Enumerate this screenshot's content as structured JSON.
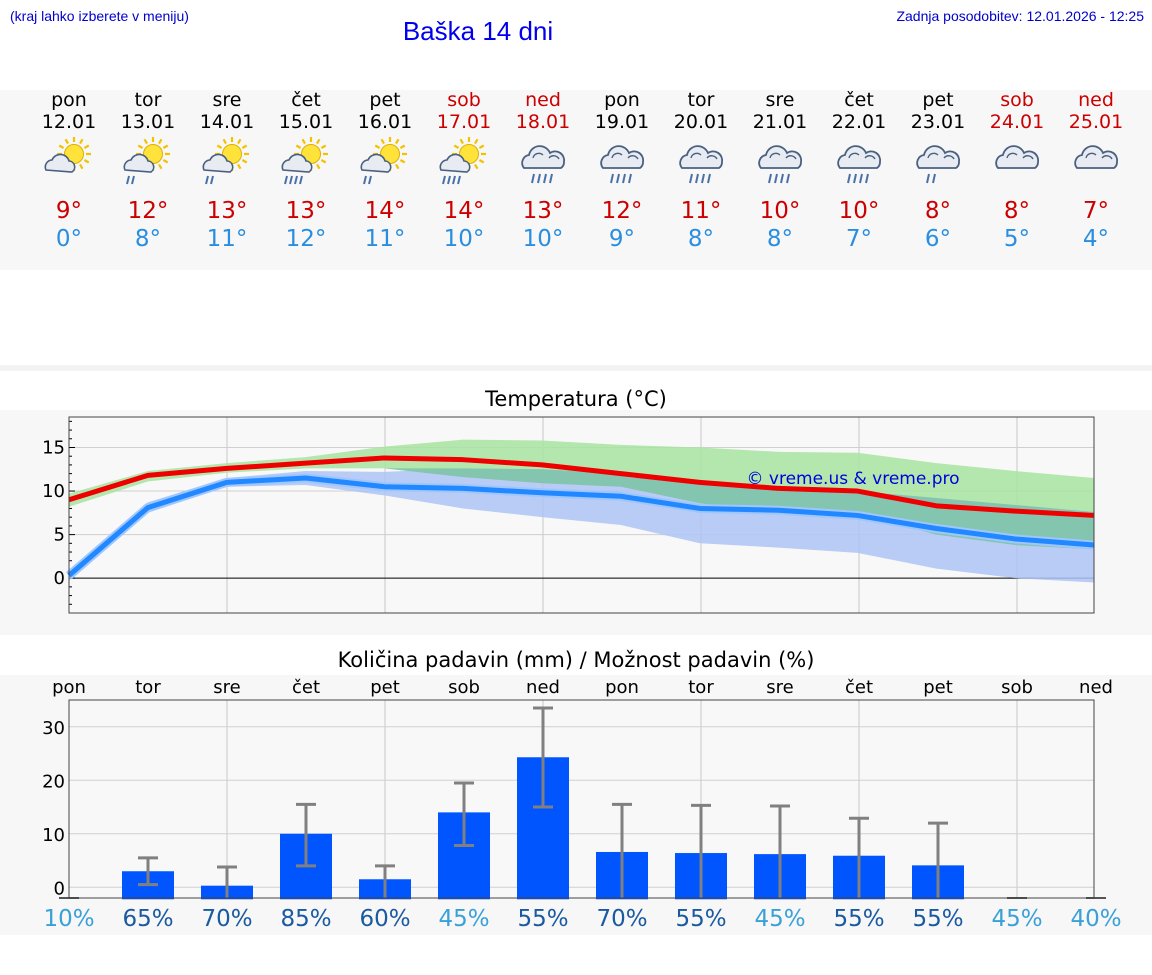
{
  "header": {
    "hint": "(kraj lahko izberete v meniju)",
    "title": "Baška 14 dni",
    "updated": "Zadnja posodobitev: 12.01.2026 - 12:25"
  },
  "days": [
    {
      "name": "pon",
      "date": "12.01",
      "weekend": false,
      "icon": "sun-cloud-icon",
      "tmax": "9°",
      "tmin": "0°"
    },
    {
      "name": "tor",
      "date": "13.01",
      "weekend": false,
      "icon": "sun-cloud-rain-icon",
      "tmax": "12°",
      "tmin": "8°"
    },
    {
      "name": "sre",
      "date": "14.01",
      "weekend": false,
      "icon": "sun-cloud-rain-icon",
      "tmax": "13°",
      "tmin": "11°"
    },
    {
      "name": "čet",
      "date": "15.01",
      "weekend": false,
      "icon": "sun-cloud-heavy-rain-icon",
      "tmax": "13°",
      "tmin": "12°"
    },
    {
      "name": "pet",
      "date": "16.01",
      "weekend": false,
      "icon": "sun-cloud-rain-icon",
      "tmax": "14°",
      "tmin": "11°"
    },
    {
      "name": "sob",
      "date": "17.01",
      "weekend": true,
      "icon": "sun-cloud-heavy-rain-icon",
      "tmax": "14°",
      "tmin": "10°"
    },
    {
      "name": "ned",
      "date": "18.01",
      "weekend": true,
      "icon": "cloud-heavy-rain-icon",
      "tmax": "13°",
      "tmin": "10°"
    },
    {
      "name": "pon",
      "date": "19.01",
      "weekend": false,
      "icon": "cloud-heavy-rain-icon",
      "tmax": "12°",
      "tmin": "9°"
    },
    {
      "name": "tor",
      "date": "20.01",
      "weekend": false,
      "icon": "cloud-heavy-rain-icon",
      "tmax": "11°",
      "tmin": "8°"
    },
    {
      "name": "sre",
      "date": "21.01",
      "weekend": false,
      "icon": "cloud-heavy-rain-icon",
      "tmax": "10°",
      "tmin": "8°"
    },
    {
      "name": "čet",
      "date": "22.01",
      "weekend": false,
      "icon": "cloud-heavy-rain-icon",
      "tmax": "10°",
      "tmin": "7°"
    },
    {
      "name": "pet",
      "date": "23.01",
      "weekend": false,
      "icon": "cloud-rain-icon",
      "tmax": "8°",
      "tmin": "6°"
    },
    {
      "name": "sob",
      "date": "24.01",
      "weekend": true,
      "icon": "cloud-icon",
      "tmax": "8°",
      "tmin": "5°"
    },
    {
      "name": "ned",
      "date": "25.01",
      "weekend": true,
      "icon": "cloud-icon",
      "tmax": "7°",
      "tmin": "4°"
    }
  ],
  "colors": {
    "tmax_line": "#ee0000",
    "tmin_line": "#2288ff",
    "max_band": "#a8e4a0",
    "min_band": "#aec4f4",
    "overlap_band": "#7cc4a4",
    "bar": "#0055ff",
    "whisker": "#808080",
    "pct_light": "#3aa0d8",
    "pct_dark": "#1a5aa0"
  },
  "chart_data": [
    {
      "type": "line",
      "title": "Temperatura (°C)",
      "watermark": "© vreme.us & vreme.pro",
      "ylim": [
        -4,
        18.5
      ],
      "yticks": [
        0,
        5,
        10,
        15
      ],
      "x": [
        0,
        1,
        2,
        3,
        4,
        5,
        6,
        7,
        8,
        9,
        10,
        11,
        12,
        13
      ],
      "series": [
        {
          "name": "tmax",
          "values": [
            9,
            11.8,
            12.6,
            13.2,
            13.8,
            13.6,
            13.0,
            12.0,
            11.0,
            10.3,
            10.0,
            8.3,
            7.7,
            7.2
          ]
        },
        {
          "name": "tmin",
          "values": [
            0.3,
            8.1,
            11.0,
            11.5,
            10.5,
            10.3,
            9.8,
            9.4,
            8.0,
            7.8,
            7.2,
            5.7,
            4.5,
            3.8
          ]
        },
        {
          "name": "tmax_band_lo",
          "values": [
            8.2,
            11.1,
            12.1,
            12.6,
            12.6,
            11.6,
            10.9,
            10.5,
            8.6,
            7.6,
            7.4,
            5.0,
            3.8,
            3.3
          ]
        },
        {
          "name": "tmax_band_hi",
          "values": [
            9.7,
            12.3,
            13.2,
            13.9,
            15.1,
            15.9,
            15.8,
            15.3,
            15.0,
            14.5,
            14.4,
            13.2,
            12.3,
            11.5
          ]
        },
        {
          "name": "tmin_band_lo",
          "values": [
            -0.3,
            7.5,
            10.5,
            10.7,
            9.5,
            8.0,
            7.0,
            6.1,
            4.0,
            3.5,
            2.9,
            1.1,
            0,
            -0.5
          ]
        },
        {
          "name": "tmin_band_hi",
          "values": [
            0.9,
            8.7,
            11.5,
            12.3,
            12.2,
            12.6,
            12.5,
            12.0,
            11.0,
            10.6,
            10.0,
            9.2,
            8.4,
            7.6
          ]
        }
      ]
    },
    {
      "type": "bar",
      "title": "Količina padavin (mm) / Možnost padavin (%)",
      "ylim": [
        -2,
        35
      ],
      "yticks": [
        0,
        10,
        20,
        30
      ],
      "categories": [
        "pon",
        "tor",
        "sre",
        "čet",
        "pet",
        "sob",
        "ned",
        "pon",
        "tor",
        "sre",
        "čet",
        "pet",
        "sob",
        "ned"
      ],
      "values": [
        0,
        3,
        0.3,
        10,
        1.5,
        14,
        24.3,
        6.6,
        6.4,
        6.2,
        5.9,
        4.1,
        0,
        0
      ],
      "err_lo": [
        0,
        0.5,
        0,
        4,
        0,
        7.8,
        15,
        0,
        0,
        0,
        0,
        0,
        0,
        0
      ],
      "err_hi": [
        0,
        5.5,
        3.8,
        15.5,
        4,
        19.5,
        33.5,
        15.5,
        15.3,
        15.2,
        12.9,
        12,
        0,
        0
      ],
      "chance": [
        "10%",
        "65%",
        "70%",
        "85%",
        "60%",
        "45%",
        "55%",
        "70%",
        "55%",
        "45%",
        "55%",
        "55%",
        "45%",
        "40%"
      ],
      "chance_dark": [
        false,
        true,
        true,
        true,
        true,
        false,
        true,
        true,
        true,
        false,
        true,
        true,
        false,
        false
      ]
    }
  ]
}
